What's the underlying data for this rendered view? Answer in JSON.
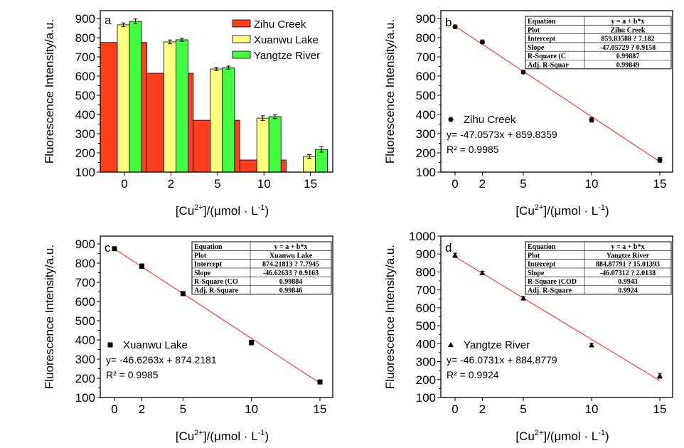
{
  "chart_data": [
    {
      "panel": "a",
      "type": "bar",
      "title": "",
      "xlabel": "[Cu2+]/(μmol·L-1)",
      "ylabel": "Fluorescence Intensity/a.u.",
      "ylim": [
        100,
        900
      ],
      "yticks": [
        100,
        200,
        300,
        400,
        500,
        600,
        700,
        800,
        900
      ],
      "categories": [
        "0",
        "2",
        "5",
        "10",
        "15"
      ],
      "legend_position": "top-right",
      "series": [
        {
          "name": "Zihu Creek",
          "color": "#ff3e1e",
          "values": [
            775,
            615,
            370,
            163,
            null
          ],
          "errors": [
            12,
            8,
            12,
            12,
            null
          ]
        },
        {
          "name": "Xuanwu Lake",
          "color": "#ffff80",
          "values": [
            867,
            778,
            637,
            381,
            181
          ],
          "errors": [
            10,
            10,
            8,
            12,
            10
          ]
        },
        {
          "name": "Yangtze River",
          "color": "#40ff40",
          "values": [
            885,
            789,
            644,
            389,
            218
          ],
          "errors": [
            12,
            8,
            8,
            10,
            14
          ]
        }
      ]
    },
    {
      "panel": "b",
      "type": "scatter",
      "xlabel": "[Cu2+]/(μmol·L-1)",
      "ylabel": "Fluorescence Intensity/a.u.",
      "ylim": [
        100,
        950
      ],
      "xlim": [
        -1,
        16
      ],
      "yticks": [
        100,
        200,
        300,
        400,
        500,
        600,
        700,
        800,
        900
      ],
      "xticks": [
        0,
        2,
        5,
        10,
        15
      ],
      "marker": "circle",
      "series_name": "Zihu Creek",
      "x": [
        0,
        2,
        5,
        10,
        15
      ],
      "y": [
        857,
        778,
        621,
        372,
        163
      ],
      "errors": [
        8,
        10,
        8,
        12,
        12
      ],
      "fit": {
        "slope": -47.0573,
        "intercept": 859.8359
      },
      "equation": "y= -47.0573x + 859.8359",
      "r2": "R² = 0.9985",
      "stats_table": [
        [
          "Equation",
          "y = a + b*x"
        ],
        [
          "Plot",
          "Zihu Creek"
        ],
        [
          "Intercept",
          "859.83588 ?    7.182"
        ],
        [
          "Slope",
          "-47.05729 ?    0.9158"
        ],
        [
          "R-Square (C",
          "0.99887"
        ],
        [
          "Adj. R-Squar",
          "0.99849"
        ]
      ]
    },
    {
      "panel": "c",
      "type": "scatter",
      "xlabel": "[Cu2+]/(μmol·L-1)",
      "ylabel": "Fluorescence Intensity/a.u.",
      "ylim": [
        100,
        950
      ],
      "xlim": [
        -1,
        16
      ],
      "yticks": [
        100,
        200,
        300,
        400,
        500,
        600,
        700,
        800,
        900
      ],
      "xticks": [
        0,
        2,
        5,
        10,
        15
      ],
      "marker": "square",
      "series_name": "Xuanwu Lake",
      "x": [
        0,
        2,
        5,
        10,
        15
      ],
      "y": [
        875,
        784,
        641,
        386,
        181
      ],
      "errors": [
        8,
        12,
        8,
        12,
        6
      ],
      "fit": {
        "slope": -46.6263,
        "intercept": 874.2181
      },
      "equation": "y= -46.6263x + 874.2181",
      "r2": "R² = 0.9985",
      "stats_table": [
        [
          "Equation",
          "y = a + b*x"
        ],
        [
          "Plot",
          "Xuanwu Lake"
        ],
        [
          "Intercept",
          "874.21813 ?   7.7945"
        ],
        [
          "Slope",
          "-46.62633 ?   0.9163"
        ],
        [
          "R-Square (CO",
          "0.99884"
        ],
        [
          "Adj. R-Square",
          "0.99846"
        ]
      ]
    },
    {
      "panel": "d",
      "type": "scatter",
      "xlabel": "[Cu2+]/(μmol·L-1)",
      "ylabel": "Fluorescence Intensity/a.u.",
      "ylim": [
        100,
        1000
      ],
      "xlim": [
        -1,
        16
      ],
      "yticks": [
        100,
        200,
        300,
        400,
        500,
        600,
        700,
        800,
        900,
        1000
      ],
      "xticks": [
        0,
        2,
        5,
        10,
        15
      ],
      "marker": "triangle",
      "series_name": "Yangtze River",
      "x": [
        0,
        2,
        5,
        10,
        15
      ],
      "y": [
        893,
        794,
        653,
        392,
        221
      ],
      "errors": [
        12,
        10,
        10,
        10,
        14
      ],
      "fit": {
        "slope": -46.0731,
        "intercept": 884.8779
      },
      "equation": "y= -46.0731x + 884.8779",
      "r2": "R² = 0.9924",
      "stats_table": [
        [
          "Equation",
          "y = a + b*x"
        ],
        [
          "Plot",
          "Yangtze River"
        ],
        [
          "Intercept",
          "884.87791 ?    15.01393"
        ],
        [
          "Slope",
          "-46.07312 ?    2.0138"
        ],
        [
          "R-Square (COD",
          "0.9943"
        ],
        [
          "Adj. R-Square",
          "0.9924"
        ]
      ]
    }
  ],
  "labels": {
    "ylabel": "Fluorescence Intensity/a.u.",
    "xlabel_prefix": "[Cu",
    "xlabel_sup": "2+",
    "xlabel_mid": "]/(",
    "xlabel_mu": "μ",
    "xlabel_unit": "mol · L",
    "xlabel_exp": "-1",
    "xlabel_end": ")"
  },
  "colors": {
    "fit_line": "#ff2020",
    "axis": "#000000"
  }
}
